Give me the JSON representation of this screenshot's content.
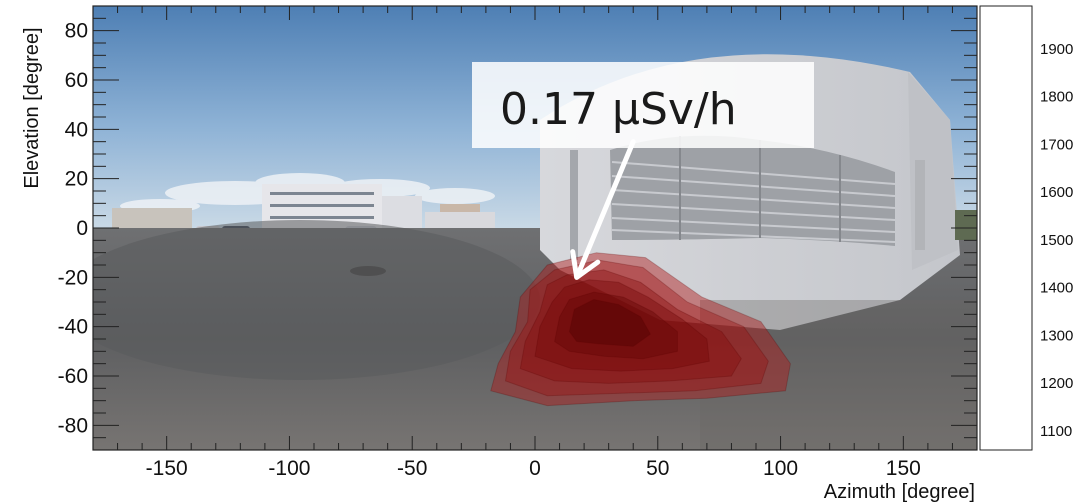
{
  "chart_data": {
    "type": "heatmap",
    "title": "",
    "xlabel": "Azimuth [degree]",
    "ylabel": "Elevation [degree]",
    "xlim": [
      -180,
      180
    ],
    "ylim": [
      -90,
      90
    ],
    "xticks": [
      -150,
      -100,
      -50,
      0,
      50,
      100,
      150
    ],
    "yticks": [
      80,
      60,
      40,
      20,
      0,
      -20,
      -40,
      -60,
      -80
    ],
    "grid": false,
    "background": "panoramic photograph of a parking lot and white building",
    "colorbar": {
      "ticks": [
        1900,
        1800,
        1700,
        1600,
        1500,
        1400,
        1300,
        1200,
        1100
      ],
      "range": [
        1060,
        1990
      ],
      "colored_range": [
        1700,
        1990
      ],
      "colors": [
        "#fde1e3",
        "#f9c3c6",
        "#f7a4a9",
        "#f2858c",
        "#ef666e",
        "#ea4750",
        "#e52831",
        "#e20c18"
      ]
    },
    "hotspot": {
      "peak_azimuth": 25,
      "peak_elevation": -35,
      "contours": [
        {
          "level": 1,
          "polygon": [
            [
              -18,
              -66
            ],
            [
              -15,
              -55
            ],
            [
              -8,
              -42
            ],
            [
              -6,
              -28
            ],
            [
              5,
              -15
            ],
            [
              25,
              -10
            ],
            [
              45,
              -12
            ],
            [
              68,
              -28
            ],
            [
              92,
              -38
            ],
            [
              104,
              -55
            ],
            [
              102,
              -66
            ],
            [
              70,
              -69
            ],
            [
              40,
              -70
            ],
            [
              5,
              -72
            ]
          ]
        },
        {
          "level": 2,
          "polygon": [
            [
              -12,
              -62
            ],
            [
              -10,
              -50
            ],
            [
              -3,
              -38
            ],
            [
              -2,
              -25
            ],
            [
              8,
              -17
            ],
            [
              26,
              -13
            ],
            [
              44,
              -16
            ],
            [
              62,
              -30
            ],
            [
              85,
              -40
            ],
            [
              95,
              -54
            ],
            [
              92,
              -63
            ],
            [
              65,
              -66
            ],
            [
              35,
              -67
            ],
            [
              5,
              -68
            ]
          ]
        },
        {
          "level": 3,
          "polygon": [
            [
              -6,
              -57
            ],
            [
              -4,
              -46
            ],
            [
              2,
              -34
            ],
            [
              5,
              -23
            ],
            [
              13,
              -19
            ],
            [
              28,
              -17
            ],
            [
              43,
              -22
            ],
            [
              58,
              -33
            ],
            [
              76,
              -42
            ],
            [
              84,
              -53
            ],
            [
              80,
              -60
            ],
            [
              55,
              -62
            ],
            [
              30,
              -63
            ],
            [
              8,
              -62
            ]
          ]
        },
        {
          "level": 4,
          "polygon": [
            [
              0,
              -52
            ],
            [
              2,
              -40
            ],
            [
              7,
              -30
            ],
            [
              12,
              -24
            ],
            [
              22,
              -21
            ],
            [
              34,
              -22
            ],
            [
              46,
              -28
            ],
            [
              60,
              -37
            ],
            [
              70,
              -45
            ],
            [
              71,
              -54
            ],
            [
              56,
              -57
            ],
            [
              35,
              -58
            ],
            [
              15,
              -57
            ]
          ]
        },
        {
          "level": 5,
          "polygon": [
            [
              8,
              -46
            ],
            [
              10,
              -36
            ],
            [
              14,
              -29
            ],
            [
              24,
              -26
            ],
            [
              36,
              -28
            ],
            [
              48,
              -34
            ],
            [
              58,
              -42
            ],
            [
              58,
              -50
            ],
            [
              44,
              -53
            ],
            [
              28,
              -52
            ],
            [
              14,
              -50
            ]
          ]
        },
        {
          "level": 6,
          "polygon": [
            [
              14,
              -42
            ],
            [
              16,
              -33
            ],
            [
              24,
              -29
            ],
            [
              34,
              -31
            ],
            [
              43,
              -36
            ],
            [
              47,
              -43
            ],
            [
              40,
              -48
            ],
            [
              26,
              -47
            ],
            [
              17,
              -46
            ]
          ]
        }
      ]
    },
    "annotation": {
      "text": "0.17 μSv/h",
      "arrow_from": [
        40,
        35
      ],
      "arrow_to": [
        17,
        -20
      ]
    }
  }
}
